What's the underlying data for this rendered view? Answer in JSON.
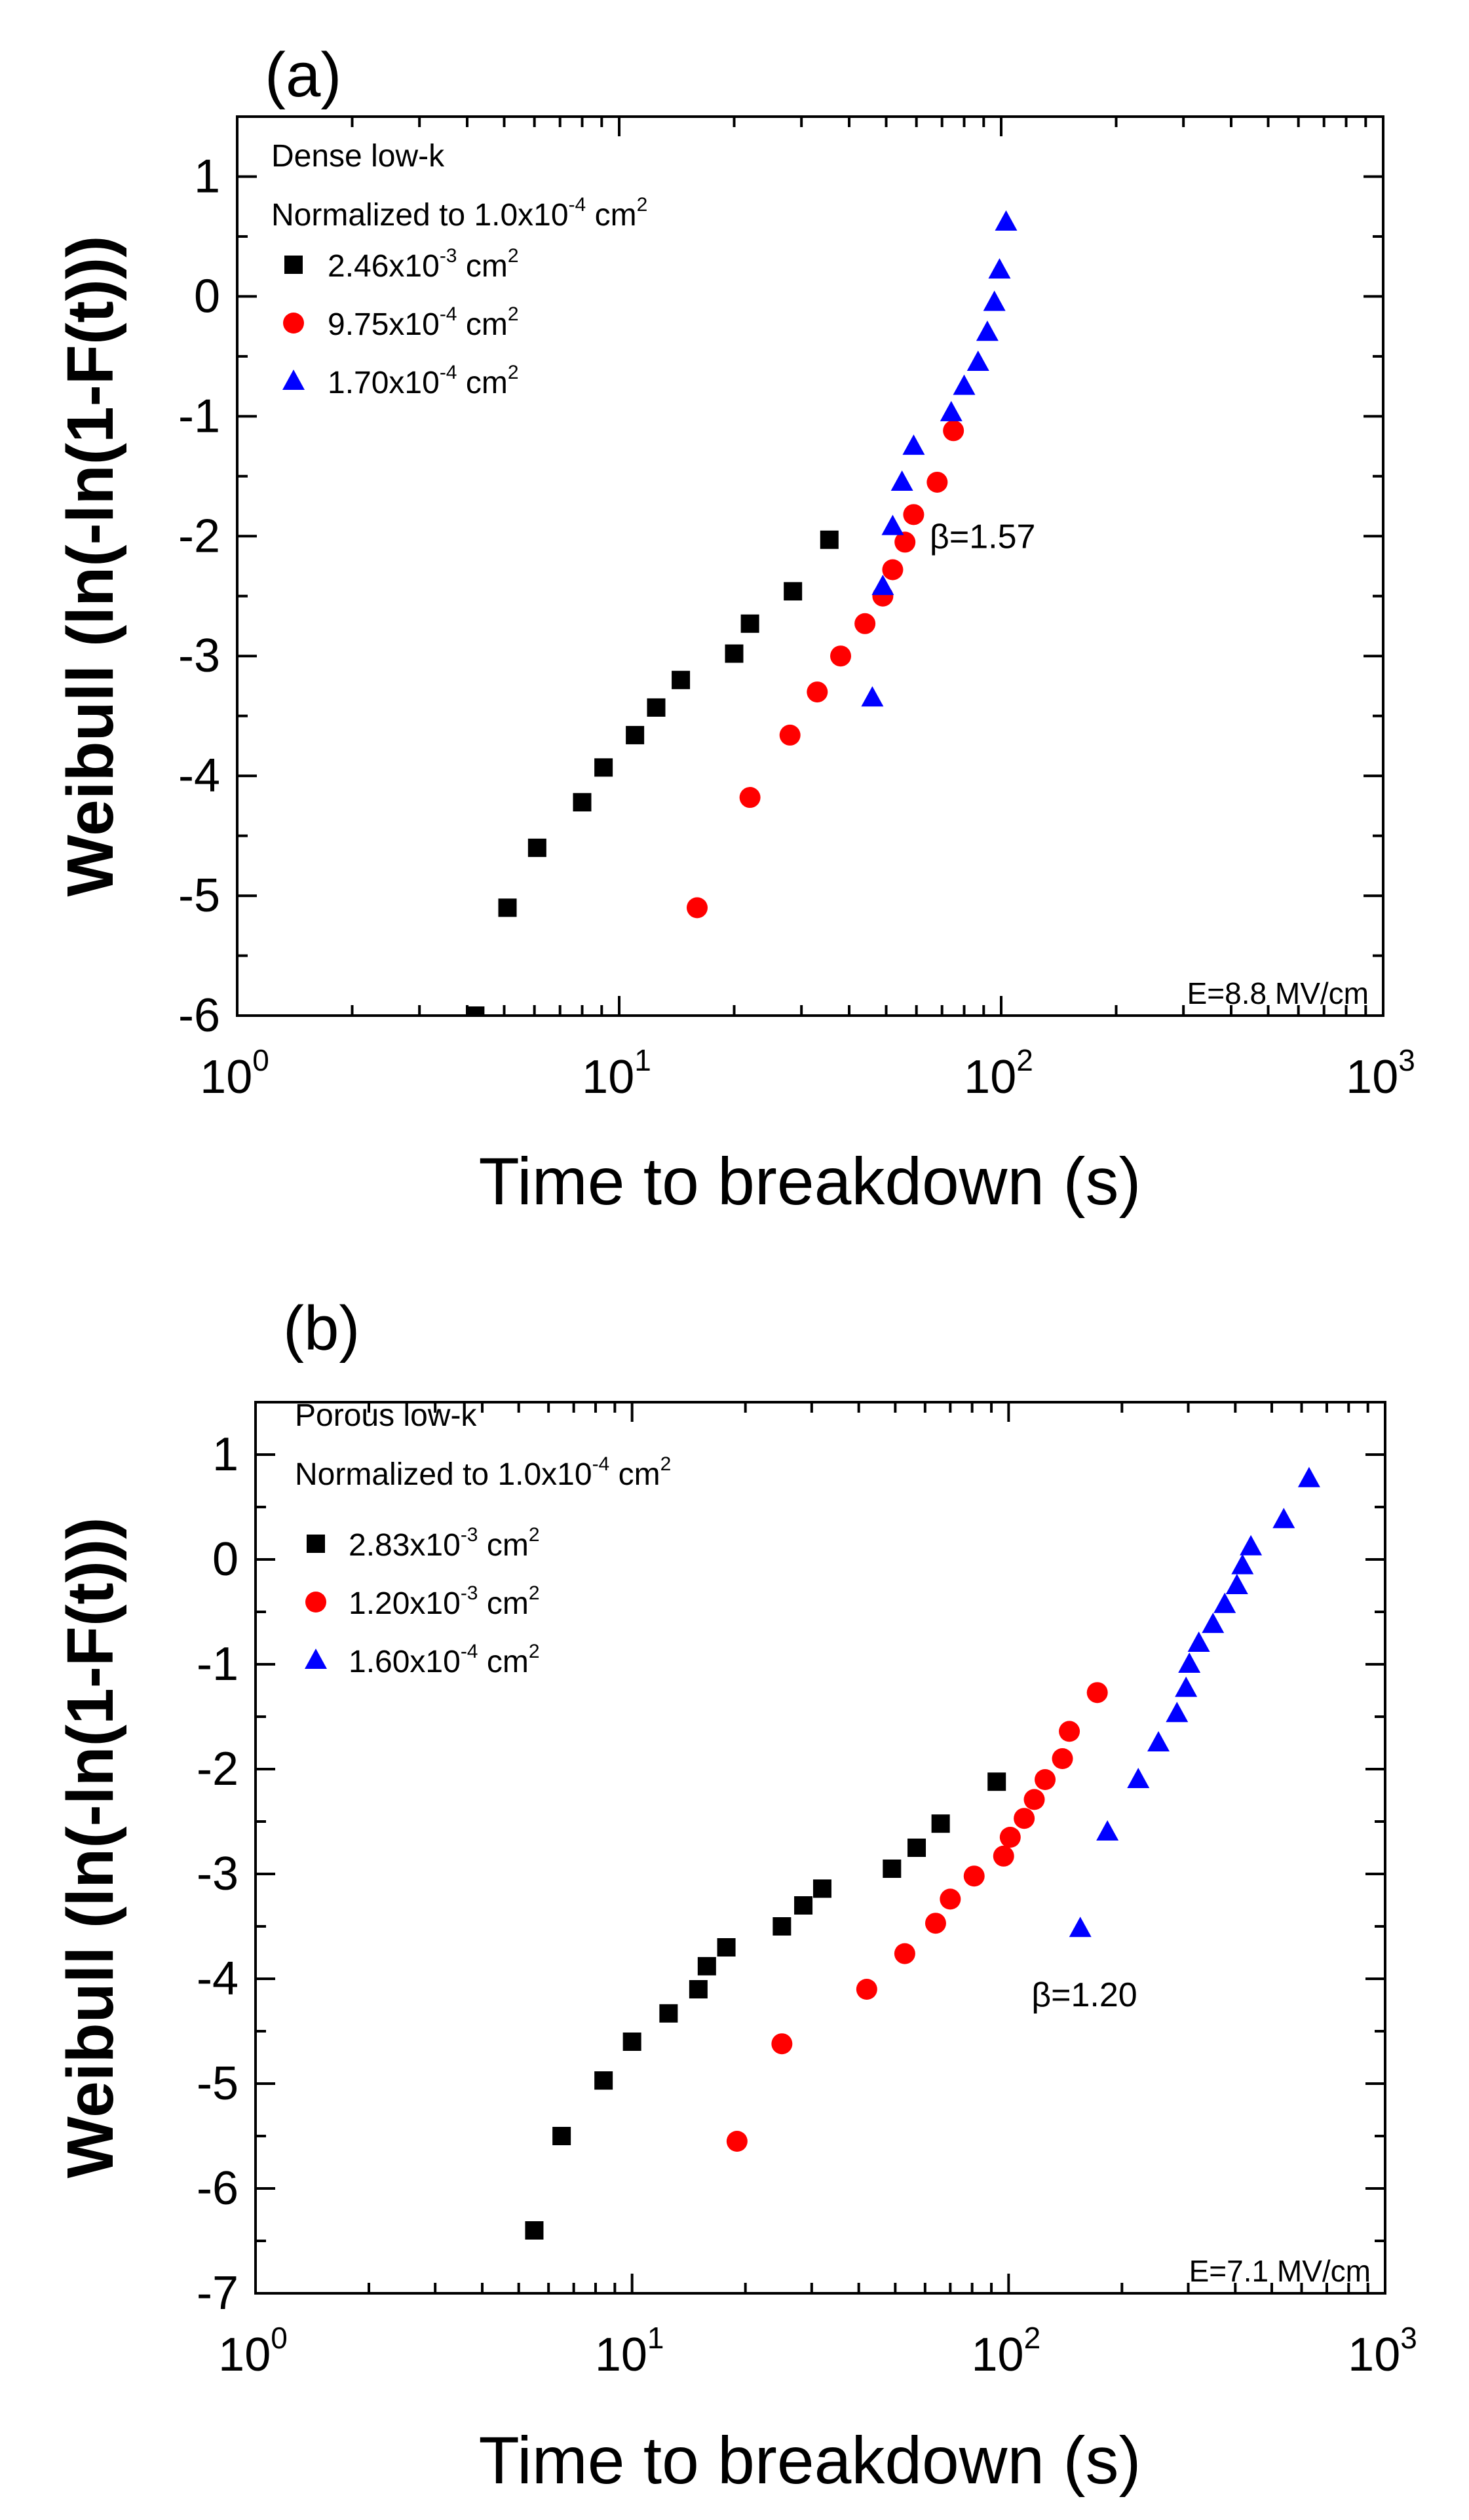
{
  "chart_data": [
    {
      "type": "scatter",
      "panel_label": "(a)",
      "xlabel": "Time to breakdown (s)",
      "ylabel": "Weibull (ln(-ln(1-F(t)))",
      "xscale": "log",
      "xlim": [
        1,
        1000
      ],
      "ylim": [
        -6,
        1.5
      ],
      "xticks": [
        {
          "base": "10",
          "exp": "0",
          "value": 1
        },
        {
          "base": "10",
          "exp": "1",
          "value": 10
        },
        {
          "base": "10",
          "exp": "2",
          "value": 100
        },
        {
          "base": "10",
          "exp": "3",
          "value": 1000
        }
      ],
      "yticks": [
        "1",
        "0",
        "-1",
        "-2",
        "-3",
        "-4",
        "-5",
        "-6"
      ],
      "legend_title": "Dense low-k",
      "legend_subtitle": {
        "text": "Normalized to 1.0x10",
        "exp": "-4",
        "unit": " cm",
        "unit_exp": "2"
      },
      "annotation": "β=1.57",
      "annotation_at": [
        65,
        -2.0
      ],
      "efield": "E=8.8 MV/cm",
      "series": [
        {
          "name": "2.46x10-3 cm2",
          "label": {
            "mantissa": "2.46x10",
            "exp": "-3",
            "unit": " cm",
            "unit_exp": "2"
          },
          "marker": "square",
          "color": "#000000",
          "points": [
            [
              4.2,
              -6.0
            ],
            [
              5.1,
              -5.1
            ],
            [
              6.1,
              -4.6
            ],
            [
              8.0,
              -4.22
            ],
            [
              9.1,
              -3.93
            ],
            [
              11.0,
              -3.66
            ],
            [
              12.5,
              -3.43
            ],
            [
              14.5,
              -3.2
            ],
            [
              20.0,
              -2.98
            ],
            [
              22.0,
              -2.73
            ],
            [
              28.5,
              -2.46
            ],
            [
              35.5,
              -2.03
            ]
          ]
        },
        {
          "name": "9.75x10-4 cm2",
          "label": {
            "mantissa": "9.75x10",
            "exp": "-4",
            "unit": " cm",
            "unit_exp": "2"
          },
          "marker": "circle",
          "color": "#ff0000",
          "points": [
            [
              16.0,
              -5.1
            ],
            [
              22.0,
              -4.18
            ],
            [
              28.0,
              -3.66
            ],
            [
              33.0,
              -3.3
            ],
            [
              38.0,
              -3.0
            ],
            [
              44.0,
              -2.73
            ],
            [
              49.0,
              -2.5
            ],
            [
              52.0,
              -2.28
            ],
            [
              56.0,
              -2.05
            ],
            [
              59.0,
              -1.82
            ],
            [
              68.0,
              -1.55
            ],
            [
              75.0,
              -1.12
            ]
          ]
        },
        {
          "name": "1.70x10-4 cm2",
          "label": {
            "mantissa": "1.70x10",
            "exp": "-4",
            "unit": " cm",
            "unit_exp": "2"
          },
          "marker": "triangle",
          "color": "#0000ff",
          "points": [
            [
              46.0,
              -3.35
            ],
            [
              49.0,
              -2.42
            ],
            [
              52.0,
              -1.92
            ],
            [
              55.0,
              -1.55
            ],
            [
              59.0,
              -1.25
            ],
            [
              74.0,
              -0.97
            ],
            [
              80.0,
              -0.75
            ],
            [
              87.0,
              -0.55
            ],
            [
              92.0,
              -0.3
            ],
            [
              96.0,
              -0.05
            ],
            [
              99.0,
              0.22
            ],
            [
              103.0,
              0.62
            ]
          ]
        }
      ]
    },
    {
      "type": "scatter",
      "panel_label": "(b)",
      "xlabel": "Time to breakdown (s)",
      "ylabel": "Weibull (ln(-ln(1-F(t)))",
      "xscale": "log",
      "xlim": [
        1,
        1000
      ],
      "ylim": [
        -7,
        1.5
      ],
      "xticks": [
        {
          "base": "10",
          "exp": "0",
          "value": 1
        },
        {
          "base": "10",
          "exp": "1",
          "value": 10
        },
        {
          "base": "10",
          "exp": "2",
          "value": 100
        },
        {
          "base": "10",
          "exp": "3",
          "value": 1000
        }
      ],
      "yticks": [
        "1",
        "0",
        "-1",
        "-2",
        "-3",
        "-4",
        "-5",
        "-6",
        "-7"
      ],
      "legend_title": "Porous low-k",
      "legend_subtitle": {
        "text": "Normalized to 1.0x10",
        "exp": "-4",
        "unit": " cm",
        "unit_exp": "2"
      },
      "annotation": "β=1.20",
      "annotation_at": [
        115,
        -4.15
      ],
      "efield": "E=7.1 MV/cm",
      "series": [
        {
          "name": "2.83x10-3 cm2",
          "label": {
            "mantissa": "2.83x10",
            "exp": "-3",
            "unit": " cm",
            "unit_exp": "2"
          },
          "marker": "square",
          "color": "#000000",
          "points": [
            [
              5.5,
              -6.4
            ],
            [
              6.5,
              -5.5
            ],
            [
              8.4,
              -4.97
            ],
            [
              10.0,
              -4.6
            ],
            [
              12.5,
              -4.33
            ],
            [
              15.0,
              -4.1
            ],
            [
              15.8,
              -3.88
            ],
            [
              17.8,
              -3.7
            ],
            [
              25.0,
              -3.5
            ],
            [
              28.5,
              -3.3
            ],
            [
              32.0,
              -3.14
            ],
            [
              49.0,
              -2.95
            ],
            [
              57.0,
              -2.75
            ],
            [
              66.0,
              -2.52
            ],
            [
              93.0,
              -2.12
            ]
          ]
        },
        {
          "name": "1.20x10-3 cm2",
          "label": {
            "mantissa": "1.20x10",
            "exp": "-3",
            "unit": " cm",
            "unit_exp": "2"
          },
          "marker": "circle",
          "color": "#ff0000",
          "points": [
            [
              19.0,
              -5.55
            ],
            [
              25.0,
              -4.62
            ],
            [
              42.0,
              -4.1
            ],
            [
              53.0,
              -3.76
            ],
            [
              64.0,
              -3.47
            ],
            [
              70.0,
              -3.24
            ],
            [
              81.0,
              -3.02
            ],
            [
              97.0,
              -2.83
            ],
            [
              101.0,
              -2.65
            ],
            [
              110.0,
              -2.47
            ],
            [
              117.0,
              -2.29
            ],
            [
              125.0,
              -2.1
            ],
            [
              139.0,
              -1.9
            ],
            [
              145.0,
              -1.64
            ],
            [
              172.0,
              -1.27
            ]
          ]
        },
        {
          "name": "1.60x10-4 cm2",
          "label": {
            "mantissa": "1.60x10",
            "exp": "-4",
            "unit": " cm",
            "unit_exp": "2"
          },
          "marker": "triangle",
          "color": "#0000ff",
          "points": [
            [
              155.0,
              -3.52
            ],
            [
              183.0,
              -2.6
            ],
            [
              221.0,
              -2.1
            ],
            [
              250.0,
              -1.75
            ],
            [
              280.0,
              -1.47
            ],
            [
              296.0,
              -1.23
            ],
            [
              302.0,
              -1.0
            ],
            [
              320.0,
              -0.8
            ],
            [
              349.0,
              -0.62
            ],
            [
              375.0,
              -0.43
            ],
            [
              404.0,
              -0.25
            ],
            [
              418.0,
              -0.06
            ],
            [
              440.0,
              0.12
            ],
            [
              538.0,
              0.38
            ],
            [
              628.0,
              0.77
            ]
          ]
        }
      ]
    }
  ]
}
